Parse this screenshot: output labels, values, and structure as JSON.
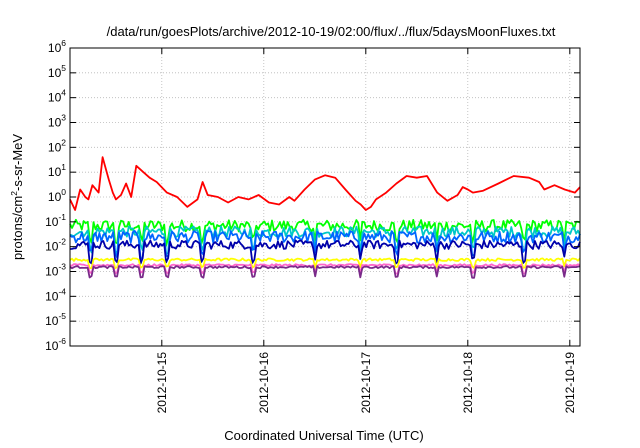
{
  "chart_data": {
    "type": "line",
    "title": "/data/run/goesPlots/archive/2012-10-19/02:00/flux/../flux/5daysMoonFluxes.txt",
    "xlabel": "Coordinated Universal Time (UTC)",
    "ylabel": "protons/cm²-s-sr-MeV",
    "ylabel_parts": {
      "base": "protons/cm",
      "sup": "2",
      "rest": "-s-sr-MeV"
    },
    "yscale": "log",
    "ylim_exponents": [
      -6,
      6
    ],
    "y_tick_base": "10",
    "y_tick_exponents": [
      "6",
      "5",
      "4",
      "3",
      "2",
      "1",
      "0",
      "-1",
      "-2",
      "-3",
      "-4",
      "-5",
      "-6"
    ],
    "xlim_days": [
      -0.9,
      4.1
    ],
    "x_ticks": [
      {
        "label": "2012-10-15",
        "day": 0
      },
      {
        "label": "2012-10-16",
        "day": 1
      },
      {
        "label": "2012-10-17",
        "day": 2
      },
      {
        "label": "2012-10-18",
        "day": 3
      },
      {
        "label": "2012-10-19",
        "day": 4
      }
    ],
    "grid": true,
    "legend": "none",
    "series": [
      {
        "color": "#ff0000",
        "x": [
          -0.9,
          -0.85,
          -0.8,
          -0.75,
          -0.72,
          -0.68,
          -0.62,
          -0.58,
          -0.52,
          -0.48,
          -0.45,
          -0.4,
          -0.35,
          -0.3,
          -0.25,
          -0.18,
          -0.12,
          -0.05,
          0.05,
          0.15,
          0.25,
          0.35,
          0.4,
          0.45,
          0.55,
          0.65,
          0.75,
          0.85,
          0.95,
          1.05,
          1.15,
          1.25,
          1.3,
          1.4,
          1.5,
          1.6,
          1.7,
          1.8,
          1.9,
          1.95,
          2.0,
          2.05,
          2.1,
          2.2,
          2.3,
          2.4,
          2.5,
          2.6,
          2.7,
          2.8,
          2.9,
          2.95,
          3.0,
          3.05,
          3.15,
          3.3,
          3.45,
          3.6,
          3.7,
          3.75,
          3.85,
          3.95,
          4.05,
          4.1
        ],
        "y": [
          0.8,
          0.3,
          2.0,
          1.0,
          0.8,
          3.0,
          1.5,
          40,
          5,
          1.5,
          0.8,
          1.2,
          3.5,
          1.0,
          18,
          10,
          6,
          4,
          1.5,
          1.0,
          0.4,
          0.8,
          4.0,
          1.2,
          1.0,
          0.6,
          1.0,
          0.8,
          1.2,
          0.6,
          0.5,
          1.0,
          0.7,
          2.0,
          5.0,
          7.5,
          6.0,
          2.0,
          0.7,
          0.5,
          0.3,
          0.4,
          0.8,
          1.5,
          3.5,
          7.0,
          6.0,
          7.0,
          1.5,
          0.7,
          1.2,
          2.5,
          2.0,
          1.5,
          1.8,
          3.5,
          7.0,
          6.0,
          4.0,
          2.0,
          3.0,
          2.0,
          1.5,
          2.5
        ]
      },
      {
        "color": "#00ff00",
        "mean": 0.07,
        "jitter": 0.55,
        "dip": 0.25
      },
      {
        "color": "#00c8c8",
        "mean": 0.04,
        "jitter": 0.5,
        "dip": 0.2
      },
      {
        "color": "#0066ff",
        "mean": 0.025,
        "jitter": 0.55,
        "dip": 0.2
      },
      {
        "color": "#0000aa",
        "mean": 0.012,
        "jitter": 0.4,
        "dip": 0.25
      },
      {
        "color": "#ffff00",
        "mean": 0.003,
        "jitter": 0.12,
        "dip": 0.5
      },
      {
        "color": "#ff66cc",
        "mean": 0.0018,
        "jitter": 0.1,
        "dip": 0.5
      },
      {
        "color": "#7a2a8a",
        "mean": 0.0015,
        "jitter": 0.1,
        "dip": 0.4
      }
    ]
  }
}
